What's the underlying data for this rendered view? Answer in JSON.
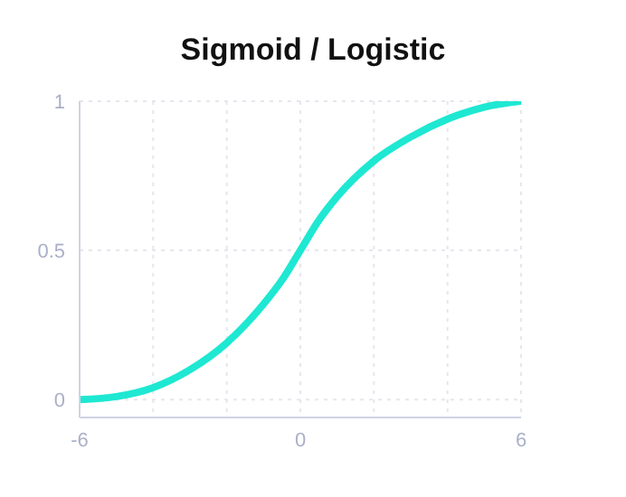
{
  "chart_data": {
    "type": "line",
    "title": "Sigmoid / Logistic",
    "x": [
      -6,
      -5,
      -4,
      -3,
      -2,
      -1,
      -0.5,
      0,
      0.5,
      1,
      2,
      3,
      4,
      5,
      6
    ],
    "series": [
      {
        "color": "#1ee8d2",
        "values": [
          0,
          0.01,
          0.04,
          0.1,
          0.19,
          0.32,
          0.4,
          0.5,
          0.6,
          0.68,
          0.8,
          0.88,
          0.94,
          0.98,
          1
        ]
      }
    ],
    "xlim": [
      -6,
      6
    ],
    "xticks": [
      -6,
      {
        "value": -4,
        "label": null
      },
      {
        "value": -2,
        "label": null
      },
      0,
      {
        "value": 2,
        "label": null
      },
      {
        "value": 4,
        "label": null
      },
      6
    ],
    "ylim": [
      -0.06,
      1
    ],
    "yticks": [
      0,
      0.5,
      1
    ],
    "grid": true,
    "marker": "none",
    "line_style": "solid"
  }
}
